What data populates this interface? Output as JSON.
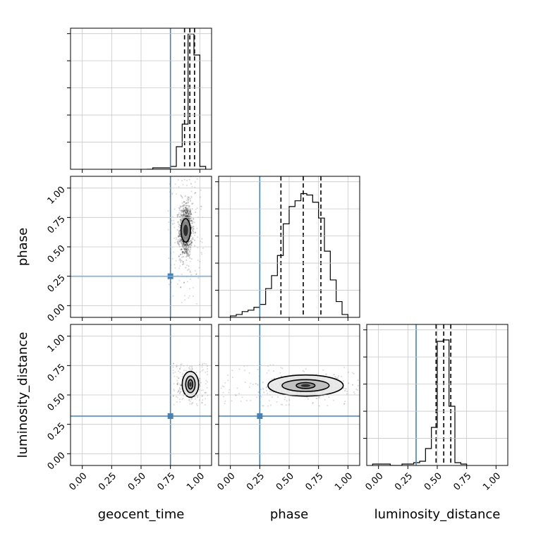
{
  "chart_data": {
    "type": "corner",
    "parameters": [
      "geocent_time",
      "phase",
      "luminosity_distance"
    ],
    "axis_labels": {
      "x": [
        "geocent_time",
        "phase",
        "luminosity_distance"
      ],
      "y": [
        "",
        "phase",
        "luminosity_distance"
      ]
    },
    "tick_values": [
      0.0,
      0.25,
      0.5,
      0.75,
      1.0
    ],
    "tick_labels": [
      "0.00",
      "0.25",
      "0.50",
      "0.75",
      "1.00"
    ],
    "axis_ranges": [
      [
        -0.1,
        1.1
      ],
      [
        -0.1,
        1.1
      ],
      [
        -0.1,
        1.1
      ]
    ],
    "grid": true,
    "truths": [
      0.75,
      0.25,
      0.32
    ],
    "truth_color": "#4682b4",
    "quantiles": [
      [
        0.87,
        0.915,
        0.955
      ],
      [
        0.43,
        0.62,
        0.77
      ],
      [
        0.49,
        0.555,
        0.615
      ]
    ],
    "histograms": [
      {
        "parameter": "geocent_time",
        "bin_edges": [
          0.55,
          0.6,
          0.65,
          0.7,
          0.75,
          0.8,
          0.85,
          0.9,
          0.95,
          1.0,
          1.05
        ],
        "counts": [
          0.0,
          0.01,
          0.01,
          0.01,
          0.02,
          0.16,
          0.32,
          0.96,
          0.81,
          0.02
        ],
        "ylim": [
          0,
          1.0
        ]
      },
      {
        "parameter": "phase",
        "bin_edges": [
          0.0,
          0.05,
          0.1,
          0.15,
          0.2,
          0.25,
          0.3,
          0.35,
          0.4,
          0.45,
          0.5,
          0.55,
          0.6,
          0.65,
          0.7,
          0.75,
          0.8,
          0.85,
          0.9,
          0.95,
          1.0
        ],
        "counts": [
          0.01,
          0.02,
          0.04,
          0.05,
          0.07,
          0.09,
          0.2,
          0.29,
          0.43,
          0.65,
          0.77,
          0.81,
          0.86,
          0.85,
          0.8,
          0.69,
          0.46,
          0.26,
          0.11,
          0.02
        ],
        "ylim": [
          0,
          0.98
        ]
      },
      {
        "parameter": "luminosity_distance",
        "bin_edges": [
          -0.05,
          0.0,
          0.05,
          0.1,
          0.15,
          0.2,
          0.25,
          0.3,
          0.35,
          0.4,
          0.45,
          0.5,
          0.55,
          0.6,
          0.65,
          0.7,
          0.75
        ],
        "counts": [
          0.01,
          0.01,
          0.01,
          0.0,
          0.0,
          0.01,
          0.01,
          0.02,
          0.03,
          0.12,
          0.27,
          0.88,
          0.89,
          0.42,
          0.02,
          0.01
        ],
        "ylim": [
          0,
          1.0
        ]
      }
    ],
    "joint_panels": [
      {
        "x_param": "geocent_time",
        "y_param": "phase",
        "density_center": [
          0.88,
          0.64
        ],
        "contour_extents": [
          [
            0.04,
            0.1
          ],
          [
            0.035,
            0.065
          ],
          [
            0.025,
            0.1
          ]
        ],
        "scatter_spread": [
          0.05,
          0.21
        ]
      },
      {
        "x_param": "geocent_time",
        "y_param": "luminosity_distance",
        "density_center": [
          0.92,
          0.59
        ],
        "contour_extents": [
          [
            0.02,
            0.04
          ],
          [
            0.04,
            0.07
          ],
          [
            0.07,
            0.11
          ]
        ],
        "scatter_spread": [
          0.05,
          0.06
        ]
      },
      {
        "x_param": "phase",
        "y_param": "luminosity_distance",
        "density_center": [
          0.64,
          0.58
        ],
        "contour_extents": [
          [
            0.08,
            0.025
          ],
          [
            0.2,
            0.05
          ],
          [
            0.32,
            0.09
          ]
        ],
        "scatter_spread": [
          0.24,
          0.06
        ]
      }
    ]
  }
}
